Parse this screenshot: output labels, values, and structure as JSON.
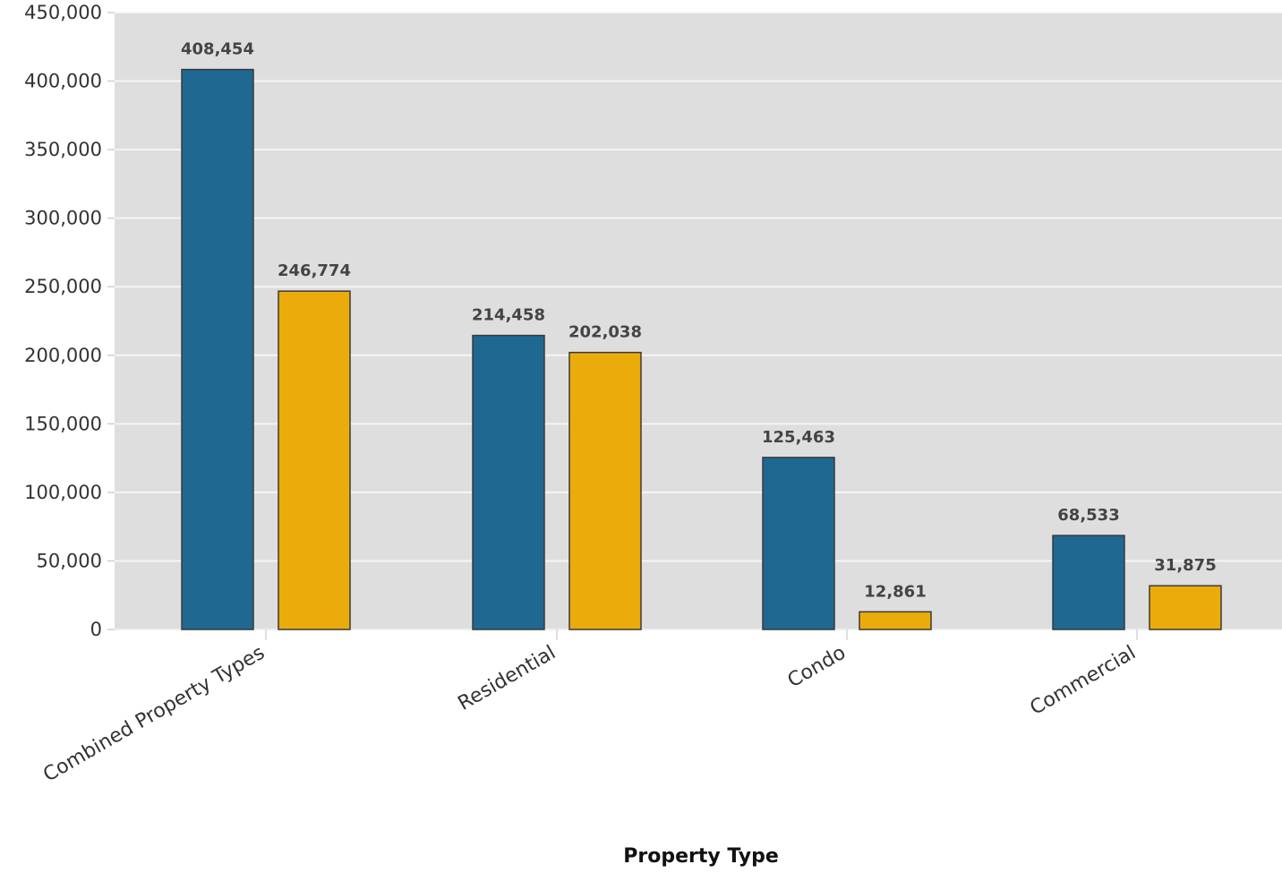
{
  "chart_data": {
    "type": "bar",
    "xlabel": "Property Type",
    "ylabel": "",
    "ylim": [
      0,
      450000
    ],
    "yticks": [
      0,
      50000,
      100000,
      150000,
      200000,
      250000,
      300000,
      350000,
      400000,
      450000
    ],
    "ytick_labels": [
      "0",
      "50,000",
      "100,000",
      "150,000",
      "200,000",
      "250,000",
      "300,000",
      "350,000",
      "400,000",
      "450,000"
    ],
    "categories": [
      "Combined Property Types",
      "Residential",
      "Condo",
      "Commercial"
    ],
    "grid": true,
    "legend": "none",
    "series": [
      {
        "values": [
          408454,
          214458,
          125463,
          68533
        ],
        "labels": [
          "408,454",
          "214,458",
          "125,463",
          "68,533"
        ],
        "color": "#1f6891"
      },
      {
        "values": [
          246774,
          202038,
          12861,
          31875
        ],
        "labels": [
          "246,774",
          "202,038",
          "12,861",
          "31,875"
        ],
        "color": "#ebac0b"
      }
    ],
    "plot_background": "#dedede",
    "gridline_color": "#f5f5f5",
    "bar_outline_color": "#3a3a3a"
  }
}
